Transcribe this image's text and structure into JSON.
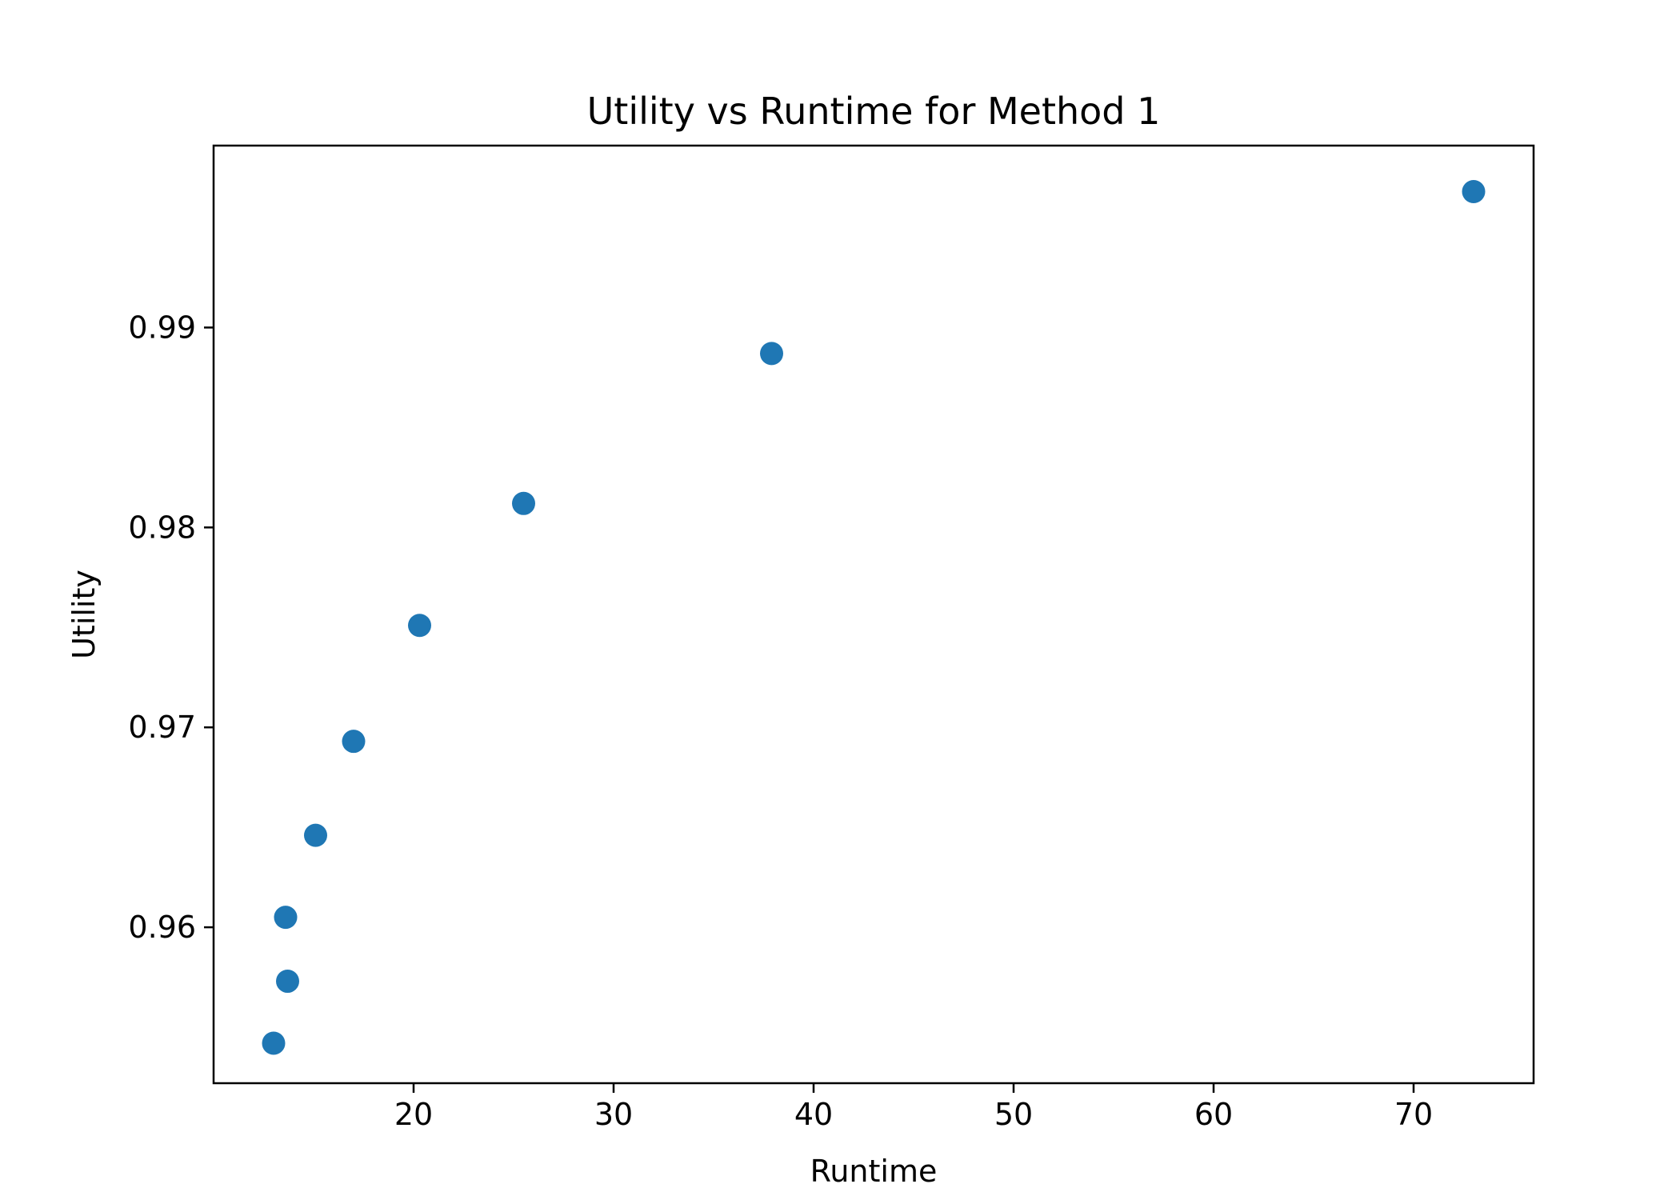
{
  "chart_data": {
    "type": "scatter",
    "title": "Utility vs Runtime for Method 1",
    "xlabel": "Runtime",
    "ylabel": "Utility",
    "xlim": [
      10.0,
      76.0
    ],
    "ylim": [
      0.9522,
      0.9991
    ],
    "xticks": [
      20,
      30,
      40,
      50,
      60,
      70
    ],
    "yticks": [
      0.96,
      0.97,
      0.98,
      0.99
    ],
    "xtick_labels": [
      "20",
      "30",
      "40",
      "50",
      "60",
      "70"
    ],
    "ytick_labels": [
      "0.96",
      "0.97",
      "0.98",
      "0.99"
    ],
    "grid": false,
    "marker_color": "#1f77b4",
    "series": [
      {
        "points": [
          {
            "x": 13.0,
            "y": 0.9542
          },
          {
            "x": 13.7,
            "y": 0.9573
          },
          {
            "x": 13.6,
            "y": 0.9605
          },
          {
            "x": 15.1,
            "y": 0.9646
          },
          {
            "x": 17.0,
            "y": 0.9693
          },
          {
            "x": 20.3,
            "y": 0.9751
          },
          {
            "x": 25.5,
            "y": 0.9812
          },
          {
            "x": 37.9,
            "y": 0.9887
          },
          {
            "x": 73.0,
            "y": 0.9968
          }
        ]
      }
    ]
  }
}
